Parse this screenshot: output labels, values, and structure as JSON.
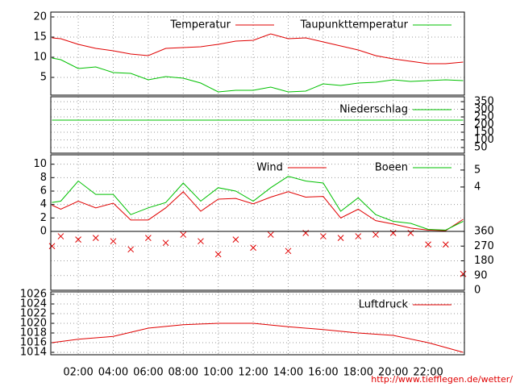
{
  "chart_data": [
    {
      "type": "line",
      "x": [
        0.5,
        1,
        2,
        3,
        4,
        5,
        6,
        7,
        8,
        9,
        10,
        11,
        12,
        13,
        14,
        15,
        16,
        17,
        18,
        19,
        20,
        21,
        22,
        23,
        24
      ],
      "series": [
        {
          "name": "Temperatur",
          "color": "#e00000",
          "values": [
            14.8,
            14.6,
            13.2,
            12.2,
            11.6,
            10.8,
            10.4,
            12.2,
            12.4,
            12.6,
            13.2,
            14.0,
            14.2,
            15.8,
            14.6,
            14.8,
            13.8,
            12.8,
            11.8,
            10.4,
            9.6,
            9.0,
            8.4,
            8.4,
            8.8
          ]
        },
        {
          "name": "Taupunkttemperatur",
          "color": "#00c000",
          "values": [
            9.8,
            9.4,
            7.2,
            7.6,
            6.2,
            6.0,
            4.4,
            5.2,
            4.8,
            3.6,
            1.4,
            1.8,
            1.8,
            2.6,
            1.4,
            1.6,
            3.4,
            3.0,
            3.6,
            3.8,
            4.4,
            4.0,
            4.2,
            4.4,
            4.2
          ]
        }
      ],
      "ylim": [
        0.6,
        21.2
      ],
      "yticks": [
        5,
        10,
        15,
        20
      ],
      "grid": true
    },
    {
      "type": "line",
      "x": [
        0.5,
        24
      ],
      "series": [
        {
          "name": "Niederschlag",
          "color": "#00c000",
          "axis": "y2",
          "values": [
            229,
            229
          ]
        }
      ],
      "y2lim": [
        13,
        382
      ],
      "y2ticks": [
        50,
        100,
        150,
        200,
        250,
        300,
        350
      ],
      "grid": true
    },
    {
      "type": "line",
      "x": [
        0.5,
        1,
        2,
        3,
        4,
        5,
        6,
        7,
        8,
        9,
        10,
        11,
        12,
        13,
        14,
        15,
        16,
        17,
        18,
        19,
        20,
        21,
        22,
        23,
        24
      ],
      "series": [
        {
          "name": "Wind",
          "color": "#e00000",
          "values": [
            3.9,
            3.3,
            4.5,
            3.5,
            4.2,
            1.7,
            1.7,
            3.5,
            5.9,
            3.0,
            4.8,
            4.9,
            4.1,
            5.1,
            5.9,
            5.1,
            5.2,
            2.0,
            3.3,
            1.6,
            1.1,
            0.5,
            0.2,
            0.1,
            1.8
          ]
        },
        {
          "name": "Boeen",
          "color": "#00c000",
          "values": [
            4.3,
            4.5,
            7.5,
            5.5,
            5.5,
            2.5,
            3.5,
            4.3,
            7.2,
            4.5,
            6.5,
            6.0,
            4.5,
            6.5,
            8.2,
            7.5,
            7.2,
            3.0,
            5.0,
            2.5,
            1.5,
            1.2,
            0.3,
            0.2,
            1.5
          ]
        }
      ],
      "ylim": [
        0,
        11.4
      ],
      "yticks": [
        0,
        2,
        4,
        6,
        8,
        10
      ],
      "y2lim": [
        1.38,
        5.9
      ],
      "y2ticks": [
        4,
        5
      ],
      "grid": true
    },
    {
      "type": "scatter",
      "x": [
        0.5,
        1,
        2,
        3,
        4,
        5,
        6,
        7,
        8,
        9,
        10,
        11,
        12,
        13,
        14,
        15,
        16,
        17,
        18,
        19,
        20,
        21,
        22,
        23,
        24
      ],
      "series": [
        {
          "color": "#e00000",
          "axis": "y2",
          "values": [
            270,
            330,
            310,
            320,
            300,
            250,
            320,
            290,
            340,
            300,
            220,
            310,
            260,
            340,
            240,
            350,
            330,
            320,
            330,
            340,
            350,
            350,
            280,
            280,
            100
          ]
        }
      ],
      "y2lim": [
        0,
        360
      ],
      "y2ticks": [
        0,
        90,
        180,
        270,
        360
      ],
      "grid": true
    },
    {
      "type": "line",
      "x": [
        0.5,
        2,
        4,
        6,
        8,
        10,
        12,
        14,
        16,
        18,
        20,
        22,
        24
      ],
      "series": [
        {
          "name": "Luftdruck",
          "color": "#e00000",
          "values": [
            1016.0,
            1016.7,
            1017.3,
            1019.0,
            1019.7,
            1020.0,
            1020.0,
            1019.3,
            1018.7,
            1018.0,
            1017.5,
            1016.0,
            1014.0
          ]
        }
      ],
      "ylim": [
        1013.5,
        1026.5
      ],
      "yticks": [
        1014,
        1016,
        1018,
        1020,
        1022,
        1024,
        1026
      ],
      "xlim": [
        0.43,
        24.07
      ],
      "xticks": [
        {
          "value": 2,
          "label": "02:00"
        },
        {
          "value": 4,
          "label": "04:00"
        },
        {
          "value": 6,
          "label": "06:00"
        },
        {
          "value": 8,
          "label": "08:00"
        },
        {
          "value": 10,
          "label": "10:00"
        },
        {
          "value": 12,
          "label": "12:00"
        },
        {
          "value": 14,
          "label": "14:00"
        },
        {
          "value": 16,
          "label": "16:00"
        },
        {
          "value": 18,
          "label": "18:00"
        },
        {
          "value": 20,
          "label": "20:00"
        },
        {
          "value": 22,
          "label": "22:00"
        }
      ],
      "grid": true
    }
  ],
  "footer": "http://www.tiefflegen.de/wetter/"
}
